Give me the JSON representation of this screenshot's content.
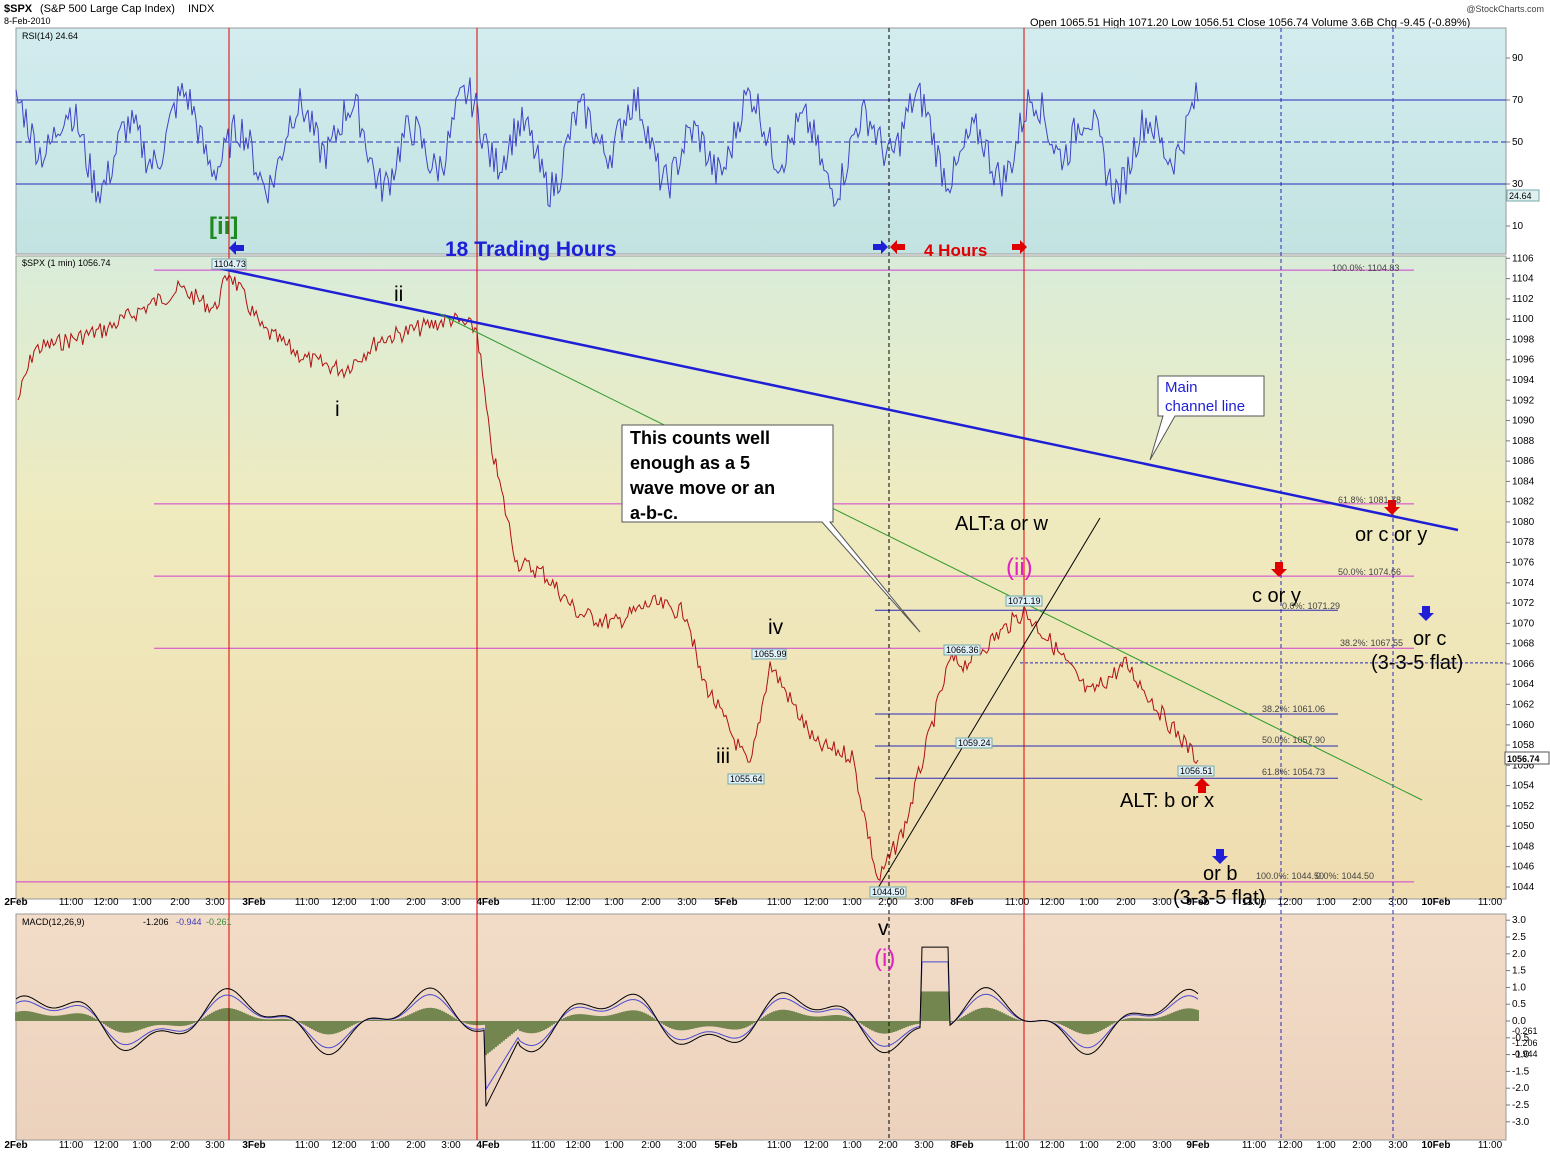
{
  "header": {
    "symbol": "$SPX",
    "name": "(S&P 500 Large Cap Index)",
    "exchange": "INDX",
    "date": "8-Feb-2010",
    "quote": "Open 1065.51  High 1071.20  Low 1056.51  Close 1056.74  Volume 3.6B  Chg -9.45 (-0.89%)",
    "watermark": "@StockCharts.com"
  },
  "panels": {
    "rsi": {
      "label": "RSI(14) 24.64",
      "last": "24.64",
      "ticks": [
        "90",
        "70",
        "50",
        "30",
        "10"
      ]
    },
    "price": {
      "label": "$SPX (1 min) 1056.74",
      "last": "1056.74",
      "ticks": [
        "1106",
        "1104",
        "1102",
        "1100",
        "1098",
        "1096",
        "1094",
        "1092",
        "1090",
        "1088",
        "1086",
        "1084",
        "1082",
        "1080",
        "1078",
        "1076",
        "1074",
        "1072",
        "1070",
        "1068",
        "1066",
        "1064",
        "1062",
        "1060",
        "1058",
        "1056",
        "1054",
        "1052",
        "1050",
        "1048",
        "1046",
        "1044"
      ]
    },
    "macd": {
      "label": "MACD(12,26,9)",
      "v1": "-1.206",
      "v2": "-0.944",
      "v3": "-0.261",
      "ticks": [
        "3.0",
        "2.5",
        "2.0",
        "1.5",
        "1.0",
        "0.5",
        "0.0",
        "-0.5",
        "-1.0",
        "-1.5",
        "-2.0",
        "-2.5",
        "-3.0"
      ],
      "right_vals": [
        "-0.261",
        "-1.206",
        "-0.944"
      ]
    }
  },
  "time_axis": [
    "2Feb",
    "11:00",
    "12:00",
    "1:00",
    "2:00",
    "3:00",
    "3Feb",
    "11:00",
    "12:00",
    "1:00",
    "2:00",
    "3:00",
    "4Feb",
    "11:00",
    "12:00",
    "1:00",
    "2:00",
    "3:00",
    "5Feb",
    "11:00",
    "12:00",
    "1:00",
    "2:00",
    "3:00",
    "8Feb",
    "11:00",
    "12:00",
    "1:00",
    "2:00",
    "3:00",
    "9Feb",
    "11:00",
    "12:00",
    "1:00",
    "2:00",
    "3:00",
    "10Feb",
    "11:00"
  ],
  "annotations": {
    "wave_ii_bracket": "[ii]",
    "trading_hours": "18 Trading Hours",
    "four_hours": "4 Hours",
    "w_ii": "ii",
    "w_i": "i",
    "w_iv": "iv",
    "w_iii": "iii",
    "w_v": "v",
    "w_i_paren": "(i)",
    "w_ii_paren": "(ii)",
    "alt_a": "ALT:a or w",
    "c_or_y": "c or y",
    "or_c_or_y": "or c or y",
    "or_c": "or c",
    "flat1": "(3-3-5 flat)",
    "alt_b": "ALT: b or x",
    "or_b": "or b",
    "flat2": "(3-3-5 flat)",
    "callout": [
      "This counts well",
      "enough as a 5",
      "wave move or an",
      "a-b-c."
    ],
    "channel": [
      "Main",
      "channel line"
    ]
  },
  "price_labels": [
    "1104.73",
    "1065.99",
    "1055.64",
    "1044.50",
    "1066.36",
    "1059.24",
    "1071.19",
    "1056.51"
  ],
  "fib_labels": {
    "f1": "100.0%: 1104.83",
    "f2": "61.8%: 1081.78",
    "f3": "50.0%: 1074.66",
    "f4": "38.2%: 1067.55",
    "g0": "0.0%: 1071.29",
    "g1": "38.2%: 1061.06",
    "g2": "50.0%: 1057.90",
    "g3": "61.8%: 1054.73",
    "g4": "100.0%: 1044.50",
    "g5": "0.0%: 1044.50"
  },
  "chart_data": {
    "type": "line",
    "title": "$SPX (S&P 500 Large Cap Index) INDX",
    "ylabel": "",
    "ylim": [
      1043,
      1107
    ],
    "series": [
      {
        "name": "$SPX (1 min)",
        "x": [
          "2Feb 9:30",
          "2Feb 10:00",
          "2Feb 11:00",
          "2Feb 12:00",
          "2Feb 1:00",
          "2Feb 2:00",
          "2Feb 3:00",
          "2Feb 3:30",
          "3Feb 10:00",
          "3Feb 11:00",
          "3Feb 12:00",
          "3Feb 1:00",
          "3Feb 2:00",
          "3Feb 3:00",
          "3Feb 3:30",
          "4Feb 9:45",
          "4Feb 10:30",
          "4Feb 11:00",
          "4Feb 12:00",
          "4Feb 1:00",
          "4Feb 2:00",
          "4Feb 3:00",
          "5Feb 9:45",
          "5Feb 10:15",
          "5Feb 11:00",
          "5Feb 12:00",
          "5Feb 1:00",
          "5Feb 1:45",
          "5Feb 2:30",
          "5Feb 3:00",
          "5Feb 3:30",
          "8Feb 10:00",
          "8Feb 11:00",
          "8Feb 12:00",
          "8Feb 1:00",
          "8Feb 2:00",
          "8Feb 3:00",
          "8Feb 3:50"
        ],
        "values": [
          1092,
          1097,
          1098,
          1099,
          1101,
          1103,
          1101,
          1104.73,
          1099,
          1096,
          1095,
          1098,
          1099,
          1100,
          1099,
          1088,
          1076,
          1075,
          1071,
          1070,
          1072,
          1071,
          1065,
          1055.64,
          1065.99,
          1058,
          1057,
          1044.5,
          1050,
          1059.24,
          1066.36,
          1066,
          1071.19,
          1068,
          1063,
          1066,
          1061,
          1056.51
        ]
      }
    ],
    "rsi": {
      "name": "RSI(14)",
      "last": 24.64,
      "levels": [
        30,
        50,
        70
      ]
    },
    "macd": {
      "name": "MACD(12,26,9)",
      "macd": -1.206,
      "signal": -0.944,
      "histogram": -0.261
    }
  }
}
